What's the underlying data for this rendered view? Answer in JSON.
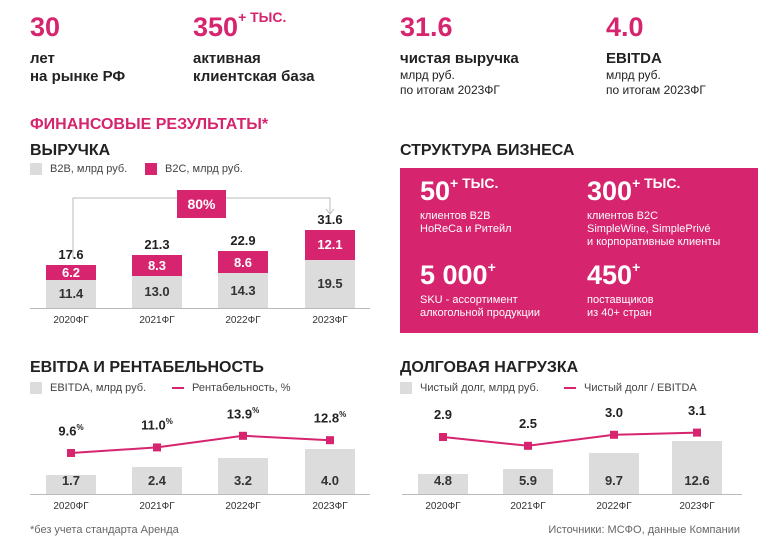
{
  "stats": [
    {
      "value": "30",
      "sup": "",
      "line1": "лет",
      "line2": "на рынке РФ"
    },
    {
      "value": "350",
      "sup": "+ ТЫС.",
      "line1": "активная",
      "line2": "клиентская база"
    },
    {
      "value": "31.6",
      "sup": "",
      "line1": "чистая выручка",
      "line2": "млрд руб.",
      "line3": "по итогам 2023ФГ"
    },
    {
      "value": "4.0",
      "sup": "",
      "line1": "EBITDA",
      "line2": "млрд руб.",
      "line3": "по итогам 2023ФГ"
    }
  ],
  "section_title": "ФИНАНСОВЫЕ РЕЗУЛЬТАТЫ*",
  "structure": {
    "title": "СТРУКТУРА БИЗНЕСА",
    "items": [
      {
        "value": "50",
        "sup": "+ ТЫС.",
        "text1": "клиентов B2B",
        "text2": "HoReCa и Ритейл",
        "text3": ""
      },
      {
        "value": "300",
        "sup": "+ ТЫС.",
        "text1": "клиентов B2C",
        "text2": "SimpleWine, SimplePrivé",
        "text3": "и корпоративные клиенты"
      },
      {
        "value": "5 000",
        "sup": "+",
        "text1": "SKU - ассортимент",
        "text2": "алкогольной продукции",
        "text3": ""
      },
      {
        "value": "450",
        "sup": "+",
        "text1": "поставщиков",
        "text2": "из 40+ стран",
        "text3": ""
      }
    ]
  },
  "colors": {
    "accent": "#d6246e",
    "gray": "#dcdcdc"
  },
  "footnote": "*без учета стандарта Аренда",
  "source": "Источники: МСФО, данные Компании",
  "chart_data": [
    {
      "type": "bar",
      "title": "ВЫРУЧКА",
      "categories": [
        "2020ФГ",
        "2021ФГ",
        "2022ФГ",
        "2023ФГ"
      ],
      "series": [
        {
          "name": "B2B, млрд руб.",
          "values": [
            11.4,
            13.0,
            14.3,
            19.5
          ]
        },
        {
          "name": "B2C, млрд руб.",
          "values": [
            6.2,
            8.3,
            8.6,
            12.1
          ]
        }
      ],
      "totals": [
        "17.6",
        "21.3",
        "22.9",
        "31.6"
      ],
      "labels_b2b": [
        "11.4",
        "13.0",
        "14.3",
        "19.5"
      ],
      "labels_b2c": [
        "6.2",
        "8.3",
        "8.6",
        "12.1"
      ],
      "growth_label": "80%",
      "legend": "top-left",
      "ylim": [
        0,
        31.6
      ]
    },
    {
      "type": "bar",
      "title": "EBITDA И РЕНТАБЕЛЬНОСТЬ",
      "categories": [
        "2020ФГ",
        "2021ФГ",
        "2022ФГ",
        "2023ФГ"
      ],
      "bar_series": {
        "name": "EBITDA, млрд руб.",
        "values": [
          1.7,
          2.4,
          3.2,
          4.0
        ],
        "labels": [
          "1.7",
          "2.4",
          "3.2",
          "4.0"
        ]
      },
      "line_series": {
        "name": "Рентабельность, %",
        "values": [
          9.6,
          11.0,
          13.9,
          12.8
        ],
        "labels": [
          "9.6",
          "11.0",
          "13.9",
          "12.8"
        ],
        "suffix": "%"
      },
      "legend": "top-left"
    },
    {
      "type": "bar",
      "title": "ДОЛГОВАЯ НАГРУЗКА",
      "categories": [
        "2020ФГ",
        "2021ФГ",
        "2022ФГ",
        "2023ФГ"
      ],
      "bar_series": {
        "name": "Чистый долг, млрд руб.",
        "values": [
          4.8,
          5.9,
          9.7,
          12.6
        ],
        "labels": [
          "4.8",
          "5.9",
          "9.7",
          "12.6"
        ]
      },
      "line_series": {
        "name": "Чистый долг / EBITDA",
        "values": [
          2.9,
          2.5,
          3.0,
          3.1
        ],
        "labels": [
          "2.9",
          "2.5",
          "3.0",
          "3.1"
        ]
      },
      "legend": "top-left"
    }
  ]
}
